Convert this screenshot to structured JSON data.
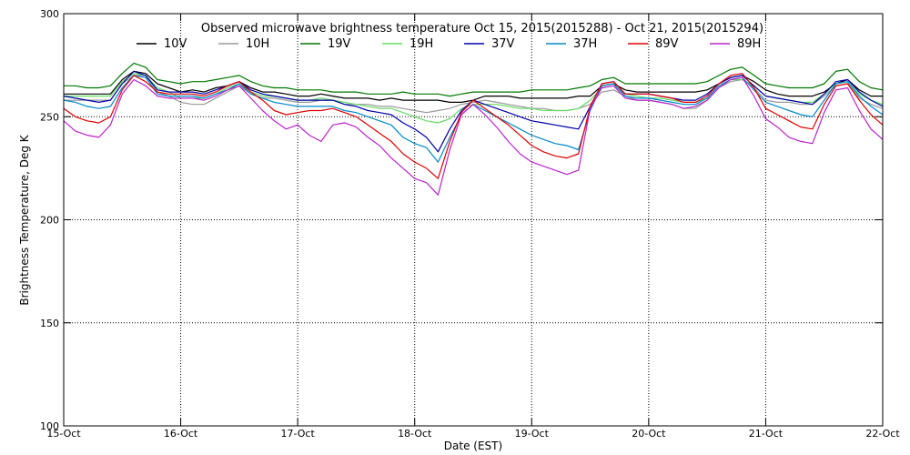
{
  "chart_data": {
    "type": "line",
    "title": "Observed microwave brightness temperature Oct 15, 2015(2015288) - Oct 21, 2015(2015294)",
    "xlabel": "Date (EST)",
    "ylabel": "Brightness Temperature, Deg K",
    "xlim": [
      0,
      7
    ],
    "ylim": [
      100,
      300
    ],
    "x_ticks": [
      0,
      1,
      2,
      3,
      4,
      5,
      6,
      7
    ],
    "x_tick_labels": [
      "15-Oct",
      "16-Oct",
      "17-Oct",
      "18-Oct",
      "19-Oct",
      "20-Oct",
      "21-Oct",
      "22-Oct"
    ],
    "y_ticks": [
      100,
      150,
      200,
      250,
      300
    ],
    "y_tick_labels": [
      "100",
      "150",
      "200",
      "250",
      "300"
    ],
    "grid": true,
    "legend_position": "top",
    "x": [
      0,
      0.1,
      0.2,
      0.3,
      0.4,
      0.5,
      0.6,
      0.7,
      0.8,
      0.9,
      1.0,
      1.1,
      1.2,
      1.3,
      1.4,
      1.5,
      1.6,
      1.7,
      1.8,
      1.9,
      2.0,
      2.1,
      2.2,
      2.3,
      2.4,
      2.5,
      2.6,
      2.7,
      2.8,
      2.9,
      3.0,
      3.1,
      3.2,
      3.3,
      3.4,
      3.5,
      3.6,
      3.7,
      3.8,
      3.9,
      4.0,
      4.1,
      4.2,
      4.3,
      4.4,
      4.5,
      4.6,
      4.7,
      4.8,
      4.9,
      5.0,
      5.1,
      5.2,
      5.3,
      5.4,
      5.5,
      5.6,
      5.7,
      5.8,
      5.9,
      6.0,
      6.1,
      6.2,
      6.3,
      6.4,
      6.5,
      6.6,
      6.7,
      6.8,
      6.9,
      7.0
    ],
    "series": [
      {
        "name": "10V",
        "color": "#000000",
        "values": [
          261,
          261,
          261,
          261,
          261,
          268,
          272,
          271,
          266,
          264,
          262,
          263,
          262,
          264,
          265,
          267,
          264,
          262,
          262,
          261,
          260,
          260,
          261,
          260,
          259,
          259,
          259,
          258,
          259,
          258,
          258,
          258,
          258,
          257,
          257,
          258,
          260,
          260,
          260,
          259,
          259,
          259,
          259,
          259,
          260,
          260,
          265,
          266,
          263,
          262,
          262,
          262,
          262,
          262,
          262,
          263,
          266,
          269,
          270,
          267,
          263,
          261,
          260,
          260,
          260,
          262,
          266,
          268,
          263,
          260,
          260
        ]
      },
      {
        "name": "10H",
        "color": "#999999",
        "values": [
          258,
          258,
          258,
          258,
          258,
          266,
          270,
          270,
          262,
          260,
          257,
          256,
          256,
          259,
          262,
          265,
          261,
          259,
          259,
          258,
          257,
          257,
          258,
          258,
          256,
          256,
          256,
          255,
          255,
          254,
          253,
          252,
          253,
          254,
          256,
          257,
          258,
          257,
          256,
          255,
          254,
          254,
          253,
          253,
          254,
          256,
          262,
          263,
          260,
          258,
          258,
          257,
          256,
          254,
          254,
          258,
          264,
          267,
          268,
          264,
          258,
          257,
          257,
          256,
          256,
          260,
          265,
          266,
          259,
          256,
          254
        ]
      },
      {
        "name": "19V",
        "color": "#007700",
        "values": [
          265,
          265,
          264,
          264,
          265,
          271,
          276,
          274,
          268,
          267,
          266,
          267,
          267,
          268,
          269,
          270,
          267,
          265,
          264,
          264,
          263,
          263,
          263,
          262,
          262,
          262,
          261,
          261,
          261,
          262,
          261,
          261,
          261,
          260,
          261,
          262,
          262,
          262,
          262,
          262,
          263,
          263,
          263,
          263,
          264,
          265,
          268,
          269,
          266,
          266,
          266,
          266,
          266,
          266,
          266,
          267,
          270,
          273,
          274,
          270,
          266,
          265,
          264,
          264,
          264,
          266,
          272,
          273,
          267,
          264,
          263
        ]
      },
      {
        "name": "19H",
        "color": "#66dd66",
        "values": [
          260,
          260,
          260,
          260,
          260,
          267,
          271,
          270,
          264,
          262,
          259,
          259,
          259,
          261,
          264,
          266,
          262,
          260,
          260,
          259,
          258,
          258,
          259,
          258,
          257,
          256,
          255,
          254,
          254,
          252,
          250,
          248,
          247,
          249,
          254,
          256,
          256,
          256,
          255,
          254,
          254,
          253,
          253,
          253,
          254,
          258,
          264,
          265,
          261,
          260,
          259,
          259,
          258,
          257,
          257,
          259,
          265,
          268,
          268,
          265,
          260,
          259,
          258,
          257,
          257,
          261,
          266,
          267,
          261,
          258,
          256
        ]
      },
      {
        "name": "37V",
        "color": "#0000aa",
        "values": [
          260,
          259,
          258,
          257,
          258,
          266,
          272,
          270,
          263,
          262,
          262,
          262,
          261,
          263,
          265,
          267,
          263,
          261,
          260,
          259,
          258,
          258,
          258,
          258,
          256,
          255,
          253,
          252,
          251,
          247,
          244,
          240,
          233,
          244,
          253,
          258,
          256,
          254,
          252,
          250,
          248,
          247,
          246,
          245,
          244,
          255,
          266,
          267,
          261,
          261,
          261,
          260,
          259,
          258,
          258,
          261,
          266,
          269,
          270,
          265,
          260,
          259,
          258,
          257,
          256,
          261,
          267,
          268,
          262,
          258,
          255
        ]
      },
      {
        "name": "37H",
        "color": "#0088cc",
        "values": [
          258,
          257,
          255,
          254,
          255,
          264,
          270,
          269,
          261,
          260,
          260,
          260,
          259,
          261,
          263,
          266,
          261,
          259,
          257,
          256,
          255,
          255,
          255,
          255,
          253,
          252,
          250,
          248,
          246,
          240,
          237,
          235,
          228,
          240,
          251,
          256,
          253,
          250,
          247,
          244,
          241,
          239,
          237,
          236,
          234,
          253,
          265,
          266,
          260,
          259,
          259,
          258,
          257,
          256,
          256,
          259,
          265,
          268,
          269,
          263,
          257,
          255,
          253,
          251,
          250,
          258,
          266,
          267,
          260,
          255,
          251
        ]
      },
      {
        "name": "89V",
        "color": "#dd0000",
        "values": [
          254,
          250,
          248,
          247,
          250,
          263,
          270,
          267,
          262,
          261,
          261,
          261,
          260,
          262,
          265,
          267,
          262,
          258,
          253,
          251,
          252,
          253,
          253,
          254,
          252,
          250,
          246,
          242,
          238,
          232,
          228,
          225,
          220,
          238,
          252,
          258,
          254,
          250,
          246,
          241,
          236,
          233,
          231,
          230,
          232,
          255,
          266,
          267,
          261,
          261,
          261,
          260,
          259,
          257,
          257,
          260,
          266,
          270,
          271,
          264,
          254,
          251,
          248,
          245,
          244,
          256,
          265,
          266,
          258,
          251,
          246
        ]
      },
      {
        "name": "89H",
        "color": "#bb22cc",
        "values": [
          248,
          243,
          241,
          240,
          246,
          261,
          268,
          265,
          260,
          259,
          259,
          259,
          258,
          260,
          263,
          265,
          259,
          253,
          248,
          244,
          246,
          241,
          238,
          246,
          247,
          245,
          240,
          236,
          230,
          225,
          220,
          218,
          212,
          234,
          251,
          256,
          251,
          245,
          238,
          232,
          228,
          226,
          224,
          222,
          224,
          254,
          264,
          265,
          259,
          258,
          258,
          257,
          256,
          254,
          255,
          258,
          264,
          268,
          269,
          260,
          249,
          245,
          240,
          238,
          237,
          252,
          263,
          264,
          253,
          244,
          239
        ]
      }
    ]
  }
}
